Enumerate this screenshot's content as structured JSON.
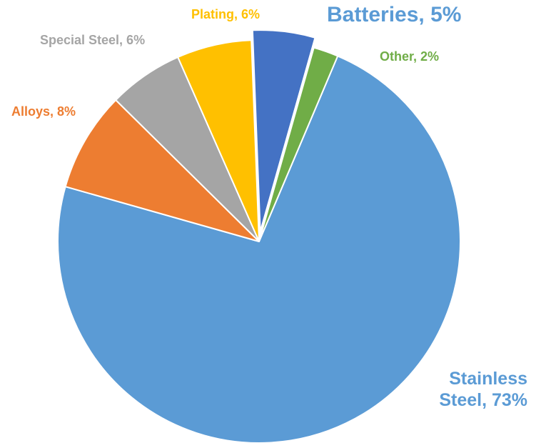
{
  "chart_data": {
    "type": "pie",
    "title": "",
    "slices": [
      {
        "label": "Stainless Steel, 73%",
        "name": "Stainless Steel",
        "value": 73,
        "color": "#5B9BD5",
        "label_color": "#5B9BD5",
        "exploded": false
      },
      {
        "label": "Alloys, 8%",
        "name": "Alloys",
        "value": 8,
        "color": "#ED7D31",
        "label_color": "#ED7D31",
        "exploded": false
      },
      {
        "label": "Special Steel, 6%",
        "name": "Special Steel",
        "value": 6,
        "color": "#A5A5A5",
        "label_color": "#A5A5A5",
        "exploded": false
      },
      {
        "label": "Plating, 6%",
        "name": "Plating",
        "value": 6,
        "color": "#FFC000",
        "label_color": "#FFC000",
        "exploded": false
      },
      {
        "label": "Batteries, 5%",
        "name": "Batteries",
        "value": 5,
        "color": "#4472C4",
        "label_color": "#5B9BD5",
        "exploded": true
      },
      {
        "label": "Other, 2%",
        "name": "Other",
        "value": 2,
        "color": "#70AD47",
        "label_color": "#70AD47",
        "exploded": false
      }
    ],
    "stainless_lines": [
      "Stainless",
      "Steel, 73%"
    ],
    "legend": "none"
  }
}
